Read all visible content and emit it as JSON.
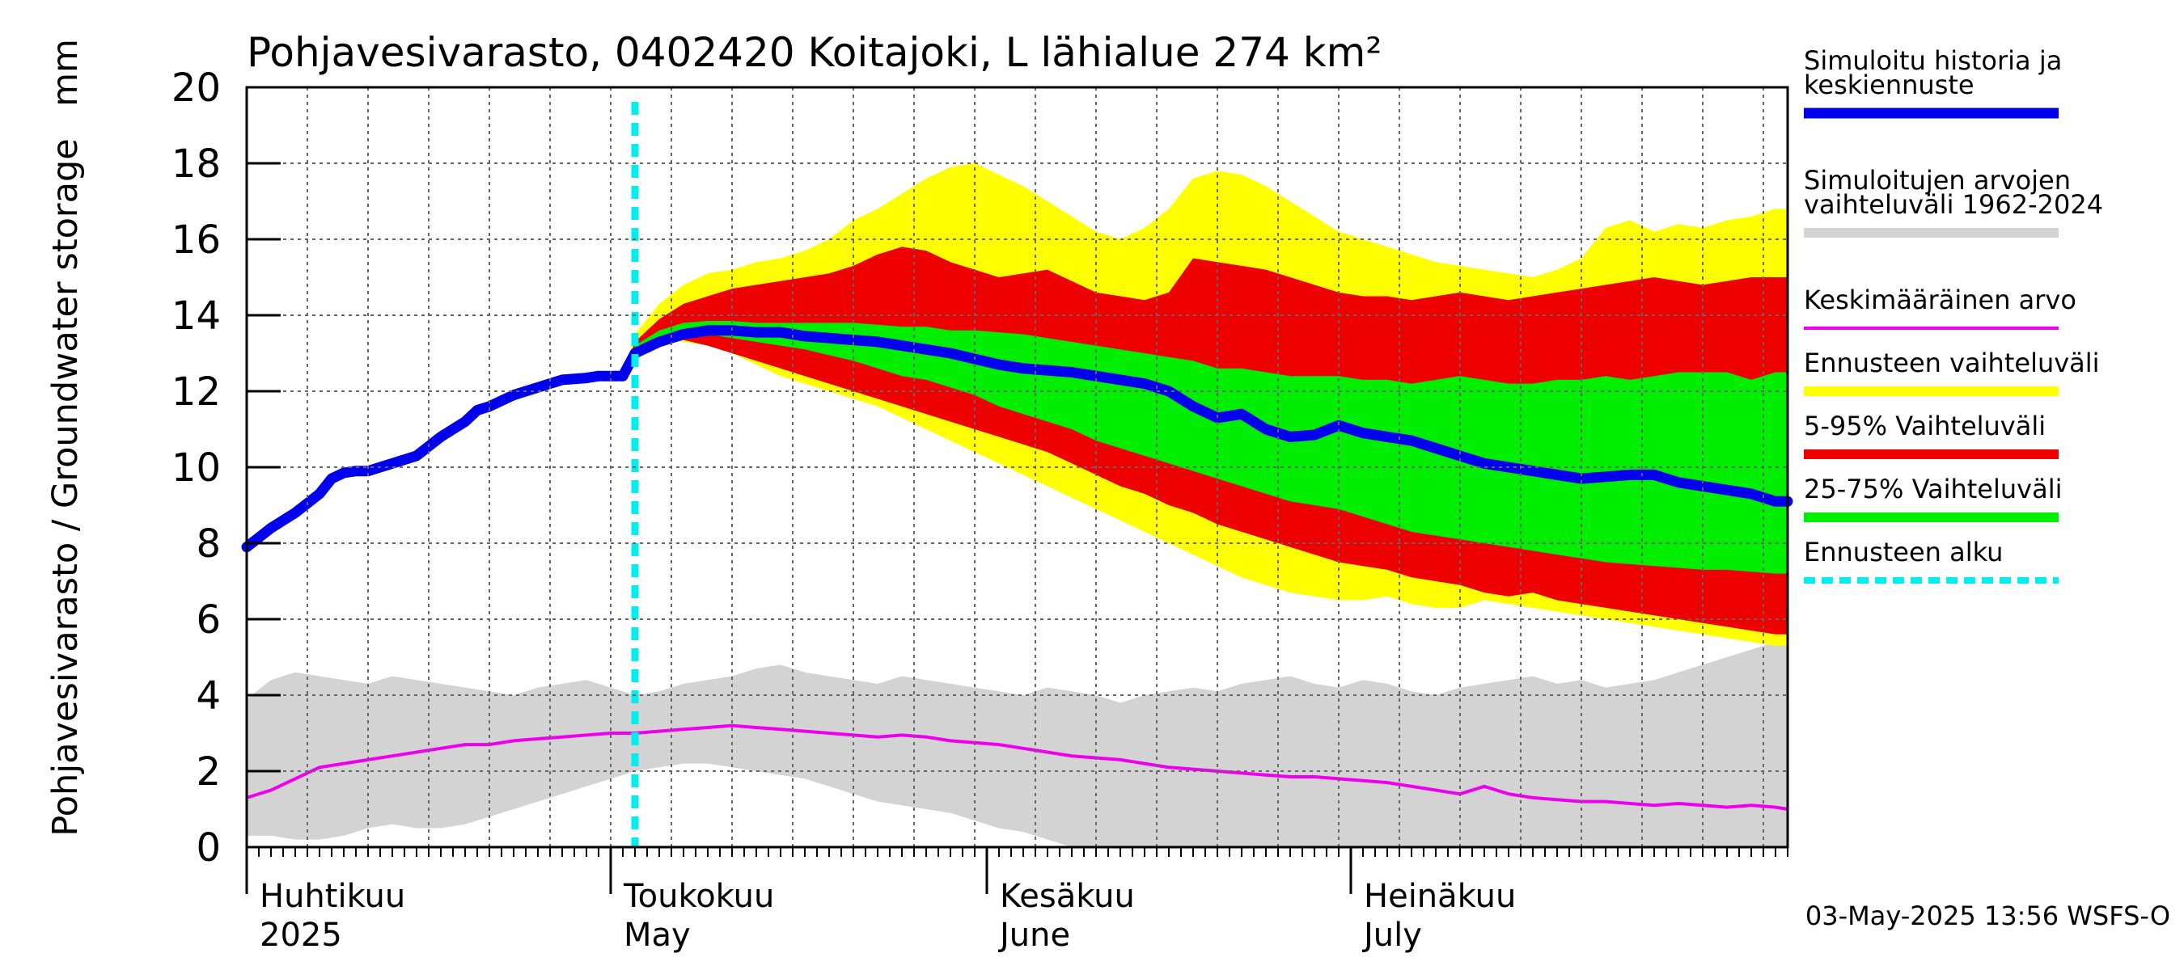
{
  "chart_data": {
    "type": "area",
    "title": "Pohjavesivarasto, 0402420 Koitajoki, L lähialue 274 km²",
    "ylabel": "Pohjavesivarasto / Groundwater storage",
    "yunit": "mm",
    "ylim": [
      0,
      20
    ],
    "yticks": [
      "0",
      "2",
      "4",
      "6",
      "8",
      "10",
      "12",
      "14",
      "16",
      "18",
      "20"
    ],
    "x_day_range": [
      0,
      127
    ],
    "months": [
      {
        "fi": "Huhtikuu",
        "en": "2025",
        "day": 0
      },
      {
        "fi": "Toukokuu",
        "en": "May",
        "day": 30
      },
      {
        "fi": "Kesäkuu",
        "en": "June",
        "day": 61
      },
      {
        "fi": "Heinäkuu",
        "en": "July",
        "day": 91
      }
    ],
    "forecast_start_day": 32,
    "footer": "03-May-2025 13:56 WSFS-O",
    "colors": {
      "history": "#0000ee",
      "hist_range": "#d3d3d3",
      "mean": "#ee00ee",
      "forecast_range": "#ffff00",
      "p5_95": "#ee0000",
      "p25_75": "#00ee00",
      "forecast_start": "#00eeee",
      "grid": "#666666"
    },
    "legend": [
      {
        "label": "Simuloitu historia ja",
        "label2": "keskiennuste",
        "key": "history",
        "style": "thick"
      },
      {
        "label": "Simuloitujen arvojen",
        "label2": "vaihteluväli 1962-2024",
        "key": "hist_range",
        "style": "band"
      },
      {
        "label": "Keskimääräinen arvo",
        "label2": "",
        "key": "mean",
        "style": "thin"
      },
      {
        "label": "Ennusteen vaihteluväli",
        "label2": "",
        "key": "forecast_range",
        "style": "band"
      },
      {
        "label": "5-95% Vaihteluväli",
        "label2": "",
        "key": "p5_95",
        "style": "band"
      },
      {
        "label": "25-75% Vaihteluväli",
        "label2": "",
        "key": "p25_75",
        "style": "band"
      },
      {
        "label": "Ennusteen alku",
        "label2": "",
        "key": "forecast_start",
        "style": "dashed"
      }
    ],
    "series": {
      "history": {
        "x": [
          0,
          2,
          4,
          6,
          7,
          8,
          9,
          10,
          12,
          14,
          16,
          18,
          19,
          20,
          22,
          24,
          25,
          26,
          28,
          29,
          30,
          31
        ],
        "y": [
          7.9,
          8.4,
          8.8,
          9.3,
          9.7,
          9.85,
          9.9,
          9.9,
          10.1,
          10.3,
          10.8,
          11.2,
          11.5,
          11.6,
          11.9,
          12.1,
          12.2,
          12.3,
          12.35,
          12.4,
          12.4,
          12.4
        ]
      },
      "median": {
        "x": [
          31,
          32,
          34,
          36,
          38,
          40,
          42,
          44,
          46,
          48,
          50,
          52,
          54,
          56,
          58,
          60,
          62,
          64,
          66,
          68,
          70,
          72,
          74,
          76,
          78,
          80,
          82,
          84,
          86,
          88,
          90,
          92,
          94,
          96,
          98,
          100,
          102,
          104,
          106,
          108,
          110,
          112,
          114,
          116,
          118,
          120,
          122,
          124,
          126,
          127
        ],
        "y": [
          12.4,
          13.0,
          13.3,
          13.5,
          13.6,
          13.6,
          13.55,
          13.55,
          13.45,
          13.4,
          13.35,
          13.3,
          13.2,
          13.1,
          13.0,
          12.85,
          12.7,
          12.6,
          12.55,
          12.5,
          12.4,
          12.3,
          12.2,
          12.0,
          11.6,
          11.3,
          11.4,
          11.0,
          10.8,
          10.85,
          11.1,
          10.9,
          10.8,
          10.7,
          10.5,
          10.3,
          10.1,
          10.0,
          9.9,
          9.8,
          9.7,
          9.75,
          9.8,
          9.8,
          9.6,
          9.5,
          9.4,
          9.3,
          9.1,
          9.1
        ]
      },
      "forecast_max": {
        "x": [
          31,
          32,
          34,
          36,
          38,
          40,
          42,
          44,
          46,
          48,
          50,
          52,
          54,
          56,
          58,
          60,
          62,
          64,
          66,
          68,
          70,
          72,
          74,
          76,
          78,
          80,
          82,
          84,
          86,
          88,
          90,
          92,
          94,
          96,
          98,
          100,
          102,
          104,
          106,
          108,
          110,
          112,
          114,
          116,
          118,
          120,
          122,
          124,
          126,
          127
        ],
        "y": [
          12.4,
          13.5,
          14.3,
          14.8,
          15.1,
          15.2,
          15.4,
          15.5,
          15.7,
          16.0,
          16.5,
          16.8,
          17.2,
          17.6,
          17.9,
          18.0,
          17.7,
          17.4,
          17.0,
          16.6,
          16.2,
          16.0,
          16.3,
          16.8,
          17.6,
          17.8,
          17.7,
          17.4,
          17.0,
          16.6,
          16.2,
          16.0,
          15.8,
          15.6,
          15.4,
          15.3,
          15.2,
          15.1,
          15.0,
          15.2,
          15.5,
          16.3,
          16.5,
          16.2,
          16.4,
          16.3,
          16.5,
          16.6,
          16.8,
          16.8
        ]
      },
      "p95": {
        "x": [
          31,
          32,
          34,
          36,
          38,
          40,
          42,
          44,
          46,
          48,
          50,
          52,
          54,
          56,
          58,
          60,
          62,
          64,
          66,
          68,
          70,
          72,
          74,
          76,
          78,
          80,
          82,
          84,
          86,
          88,
          90,
          92,
          94,
          96,
          98,
          100,
          102,
          104,
          106,
          108,
          110,
          112,
          114,
          116,
          118,
          120,
          122,
          124,
          126,
          127
        ],
        "y": [
          12.4,
          13.3,
          13.9,
          14.3,
          14.5,
          14.7,
          14.8,
          14.9,
          15.0,
          15.1,
          15.3,
          15.6,
          15.8,
          15.7,
          15.4,
          15.2,
          15.0,
          15.1,
          15.2,
          14.9,
          14.6,
          14.5,
          14.4,
          14.6,
          15.5,
          15.4,
          15.3,
          15.2,
          15.0,
          14.8,
          14.6,
          14.5,
          14.5,
          14.4,
          14.5,
          14.6,
          14.5,
          14.4,
          14.5,
          14.6,
          14.7,
          14.8,
          14.9,
          15.0,
          14.9,
          14.8,
          14.9,
          15.0,
          15.0,
          15.0
        ]
      },
      "p75": {
        "x": [
          31,
          32,
          34,
          36,
          38,
          40,
          42,
          44,
          46,
          48,
          50,
          52,
          54,
          56,
          58,
          60,
          62,
          64,
          66,
          68,
          70,
          72,
          74,
          76,
          78,
          80,
          82,
          84,
          86,
          88,
          90,
          92,
          94,
          96,
          98,
          100,
          102,
          104,
          106,
          108,
          110,
          112,
          114,
          116,
          118,
          120,
          122,
          124,
          126,
          127
        ],
        "y": [
          12.4,
          13.2,
          13.6,
          13.8,
          13.85,
          13.85,
          13.8,
          13.8,
          13.8,
          13.8,
          13.8,
          13.75,
          13.7,
          13.7,
          13.6,
          13.6,
          13.55,
          13.5,
          13.4,
          13.3,
          13.2,
          13.1,
          13.0,
          12.9,
          12.8,
          12.6,
          12.6,
          12.5,
          12.4,
          12.4,
          12.4,
          12.3,
          12.3,
          12.2,
          12.3,
          12.4,
          12.3,
          12.2,
          12.2,
          12.3,
          12.3,
          12.4,
          12.3,
          12.4,
          12.5,
          12.5,
          12.5,
          12.3,
          12.5,
          12.5
        ]
      },
      "p25": {
        "x": [
          31,
          32,
          34,
          36,
          38,
          40,
          42,
          44,
          46,
          48,
          50,
          52,
          54,
          56,
          58,
          60,
          62,
          64,
          66,
          68,
          70,
          72,
          74,
          76,
          78,
          80,
          82,
          84,
          86,
          88,
          90,
          92,
          94,
          96,
          98,
          100,
          102,
          104,
          106,
          108,
          110,
          112,
          114,
          116,
          118,
          120,
          122,
          124,
          126,
          127
        ],
        "y": [
          12.4,
          13.1,
          13.4,
          13.5,
          13.5,
          13.4,
          13.3,
          13.2,
          13.1,
          12.95,
          12.8,
          12.6,
          12.4,
          12.3,
          12.1,
          11.9,
          11.6,
          11.4,
          11.2,
          11.0,
          10.7,
          10.5,
          10.3,
          10.1,
          9.9,
          9.7,
          9.5,
          9.3,
          9.1,
          9.0,
          8.9,
          8.7,
          8.5,
          8.3,
          8.2,
          8.1,
          8.0,
          7.9,
          7.8,
          7.7,
          7.6,
          7.5,
          7.45,
          7.4,
          7.35,
          7.3,
          7.3,
          7.25,
          7.2,
          7.2
        ]
      },
      "p5": {
        "x": [
          31,
          32,
          34,
          36,
          38,
          40,
          42,
          44,
          46,
          48,
          50,
          52,
          54,
          56,
          58,
          60,
          62,
          64,
          66,
          68,
          70,
          72,
          74,
          76,
          78,
          80,
          82,
          84,
          86,
          88,
          90,
          92,
          94,
          96,
          98,
          100,
          102,
          104,
          106,
          108,
          110,
          112,
          114,
          116,
          118,
          120,
          122,
          124,
          126,
          127
        ],
        "y": [
          12.4,
          13.0,
          13.3,
          13.35,
          13.2,
          13.0,
          12.8,
          12.6,
          12.4,
          12.2,
          12.0,
          11.8,
          11.6,
          11.4,
          11.2,
          11.0,
          10.8,
          10.6,
          10.4,
          10.1,
          9.8,
          9.5,
          9.3,
          9.0,
          8.8,
          8.5,
          8.3,
          8.1,
          7.9,
          7.7,
          7.5,
          7.4,
          7.3,
          7.1,
          7.0,
          6.9,
          6.7,
          6.6,
          6.7,
          6.5,
          6.4,
          6.3,
          6.2,
          6.1,
          6.0,
          5.9,
          5.8,
          5.7,
          5.6,
          5.6
        ]
      },
      "forecast_min": {
        "x": [
          31,
          32,
          34,
          36,
          38,
          40,
          42,
          44,
          46,
          48,
          50,
          52,
          54,
          56,
          58,
          60,
          62,
          64,
          66,
          68,
          70,
          72,
          74,
          76,
          78,
          80,
          82,
          84,
          86,
          88,
          90,
          92,
          94,
          96,
          98,
          100,
          102,
          104,
          106,
          108,
          110,
          112,
          114,
          116,
          118,
          120,
          122,
          124,
          126,
          127
        ],
        "y": [
          12.4,
          13.0,
          13.3,
          13.3,
          13.2,
          13.0,
          12.7,
          12.4,
          12.2,
          12.0,
          11.8,
          11.6,
          11.3,
          11.0,
          10.7,
          10.4,
          10.1,
          9.8,
          9.5,
          9.2,
          8.9,
          8.6,
          8.3,
          8.0,
          7.7,
          7.4,
          7.1,
          6.9,
          6.7,
          6.6,
          6.5,
          6.5,
          6.6,
          6.4,
          6.3,
          6.3,
          6.5,
          6.4,
          6.3,
          6.2,
          6.1,
          6.0,
          5.9,
          5.8,
          5.7,
          5.6,
          5.5,
          5.4,
          5.3,
          5.3
        ]
      },
      "hist_max": {
        "x": [
          0,
          2,
          4,
          6,
          8,
          10,
          12,
          14,
          16,
          18,
          20,
          22,
          24,
          26,
          28,
          30,
          32,
          34,
          36,
          38,
          40,
          42,
          44,
          46,
          48,
          50,
          52,
          54,
          56,
          58,
          60,
          62,
          64,
          66,
          68,
          70,
          72,
          74,
          76,
          78,
          80,
          82,
          84,
          86,
          88,
          90,
          92,
          94,
          96,
          98,
          100,
          102,
          104,
          106,
          108,
          110,
          112,
          114,
          116,
          118,
          120,
          122,
          124,
          126,
          127
        ],
        "y": [
          3.9,
          4.4,
          4.6,
          4.5,
          4.4,
          4.3,
          4.5,
          4.4,
          4.3,
          4.2,
          4.1,
          4.0,
          4.2,
          4.3,
          4.4,
          4.2,
          4.0,
          4.1,
          4.3,
          4.4,
          4.5,
          4.7,
          4.8,
          4.6,
          4.5,
          4.4,
          4.3,
          4.5,
          4.4,
          4.3,
          4.2,
          4.1,
          4.0,
          4.2,
          4.1,
          4.0,
          3.8,
          4.0,
          4.1,
          4.2,
          4.1,
          4.3,
          4.4,
          4.5,
          4.3,
          4.2,
          4.4,
          4.3,
          4.1,
          4.0,
          4.2,
          4.3,
          4.4,
          4.5,
          4.3,
          4.4,
          4.2,
          4.3,
          4.4,
          4.6,
          4.8,
          5.0,
          5.2,
          5.4,
          5.5
        ]
      },
      "hist_min": {
        "x": [
          0,
          2,
          4,
          6,
          8,
          10,
          12,
          14,
          16,
          18,
          20,
          22,
          24,
          26,
          28,
          30,
          32,
          34,
          36,
          38,
          40,
          42,
          44,
          46,
          48,
          50,
          52,
          54,
          56,
          58,
          60,
          62,
          64,
          66,
          68,
          70,
          72,
          74,
          76,
          78,
          80,
          82,
          84,
          86,
          88,
          90,
          92,
          94,
          96,
          98,
          100,
          102,
          104,
          106,
          108,
          110,
          112,
          114,
          116,
          118,
          120,
          122,
          124,
          126,
          127
        ],
        "y": [
          0.3,
          0.3,
          0.2,
          0.2,
          0.3,
          0.5,
          0.6,
          0.5,
          0.5,
          0.6,
          0.8,
          1.0,
          1.2,
          1.4,
          1.6,
          1.8,
          2.0,
          2.1,
          2.2,
          2.2,
          2.1,
          2.0,
          1.9,
          1.8,
          1.6,
          1.4,
          1.2,
          1.1,
          1.0,
          0.9,
          0.7,
          0.5,
          0.4,
          0.2,
          0.0,
          0.0,
          0.0,
          0.0,
          0.0,
          0.0,
          0.0,
          0.0,
          0.0,
          0.0,
          0.0,
          0.0,
          0.0,
          0.0,
          0.0,
          0.0,
          0.0,
          0.0,
          0.0,
          0.0,
          0.0,
          0.0,
          0.0,
          0.0,
          0.0,
          0.0,
          0.0,
          0.0,
          0.0,
          0.0,
          0.0
        ]
      },
      "mean": {
        "x": [
          0,
          2,
          4,
          6,
          8,
          10,
          12,
          14,
          16,
          18,
          20,
          22,
          24,
          26,
          28,
          30,
          32,
          34,
          36,
          38,
          40,
          42,
          44,
          46,
          48,
          50,
          52,
          54,
          56,
          58,
          60,
          62,
          64,
          66,
          68,
          70,
          72,
          74,
          76,
          78,
          80,
          82,
          84,
          86,
          88,
          90,
          92,
          94,
          96,
          98,
          100,
          102,
          104,
          106,
          108,
          110,
          112,
          114,
          116,
          118,
          120,
          122,
          124,
          126,
          127
        ],
        "y": [
          1.3,
          1.5,
          1.8,
          2.1,
          2.2,
          2.3,
          2.4,
          2.5,
          2.6,
          2.7,
          2.7,
          2.8,
          2.85,
          2.9,
          2.95,
          3.0,
          3.0,
          3.05,
          3.1,
          3.15,
          3.2,
          3.15,
          3.1,
          3.05,
          3.0,
          2.95,
          2.9,
          2.95,
          2.9,
          2.8,
          2.75,
          2.7,
          2.6,
          2.5,
          2.4,
          2.35,
          2.3,
          2.2,
          2.1,
          2.05,
          2.0,
          1.95,
          1.9,
          1.85,
          1.85,
          1.8,
          1.75,
          1.7,
          1.6,
          1.5,
          1.4,
          1.6,
          1.4,
          1.3,
          1.25,
          1.2,
          1.2,
          1.15,
          1.1,
          1.15,
          1.1,
          1.05,
          1.1,
          1.05,
          1.0
        ]
      }
    }
  }
}
